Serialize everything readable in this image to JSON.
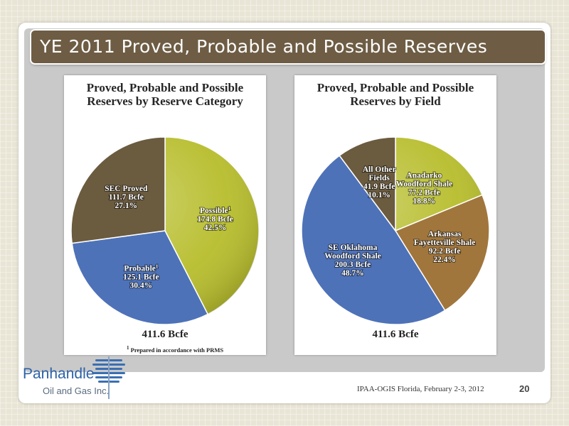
{
  "slide": {
    "title": "YE 2011 Proved, Probable and Possible Reserves",
    "footer": "IPAA-OGIS Florida, February 2-3, 2012",
    "page_number": "20"
  },
  "logo": {
    "name_line1": "Panhandle",
    "name_line2": "Oil and Gas Inc."
  },
  "chart_data": [
    {
      "type": "pie",
      "title_line1": "Proved, Probable and Possible",
      "title_line2": "Reserves by Reserve Category",
      "total": "411.6 Bcfe",
      "footnote_marker": "1",
      "footnote": "Prepared in accordance with PRMS",
      "slices": [
        {
          "name": "Possible",
          "sup": "1",
          "value": 174.8,
          "value_label": "174.8 Bcfe",
          "percent_label": "42.5%",
          "color": "#b7bd2b"
        },
        {
          "name": "Probable",
          "sup": "1",
          "value": 125.1,
          "value_label": "125.1 Bcfe",
          "percent_label": "30.4%",
          "color": "#4e72b8"
        },
        {
          "name": "SEC Proved",
          "sup": "",
          "value": 111.7,
          "value_label": "111.7 Bcfe",
          "percent_label": "27.1%",
          "color": "#6b5b3f"
        }
      ]
    },
    {
      "type": "pie",
      "title_line1": "Proved, Probable and Possible",
      "title_line2": "Reserves by Field",
      "total": "411.6 Bcfe",
      "slices": [
        {
          "name": "Anadarko\nWoodford Shale",
          "sup": "",
          "value": 77.2,
          "value_label": "77.2 Bcfe",
          "percent_label": "18.8%",
          "color": "#b7bd2b"
        },
        {
          "name": "Arkansas\nFayetteville Shale",
          "sup": "",
          "value": 92.2,
          "value_label": "92.2 Bcfe",
          "percent_label": "22.4%",
          "color": "#a1763c"
        },
        {
          "name": "SE Oklahoma\nWoodford Shale",
          "sup": "",
          "value": 200.3,
          "value_label": "200.3 Bcfe",
          "percent_label": "48.7%",
          "color": "#4e72b8"
        },
        {
          "name": "All Other\nFields",
          "sup": "",
          "value": 41.9,
          "value_label": "41.9 Bcfe",
          "percent_label": "10.1%",
          "color": "#6b5b3f"
        }
      ]
    }
  ]
}
